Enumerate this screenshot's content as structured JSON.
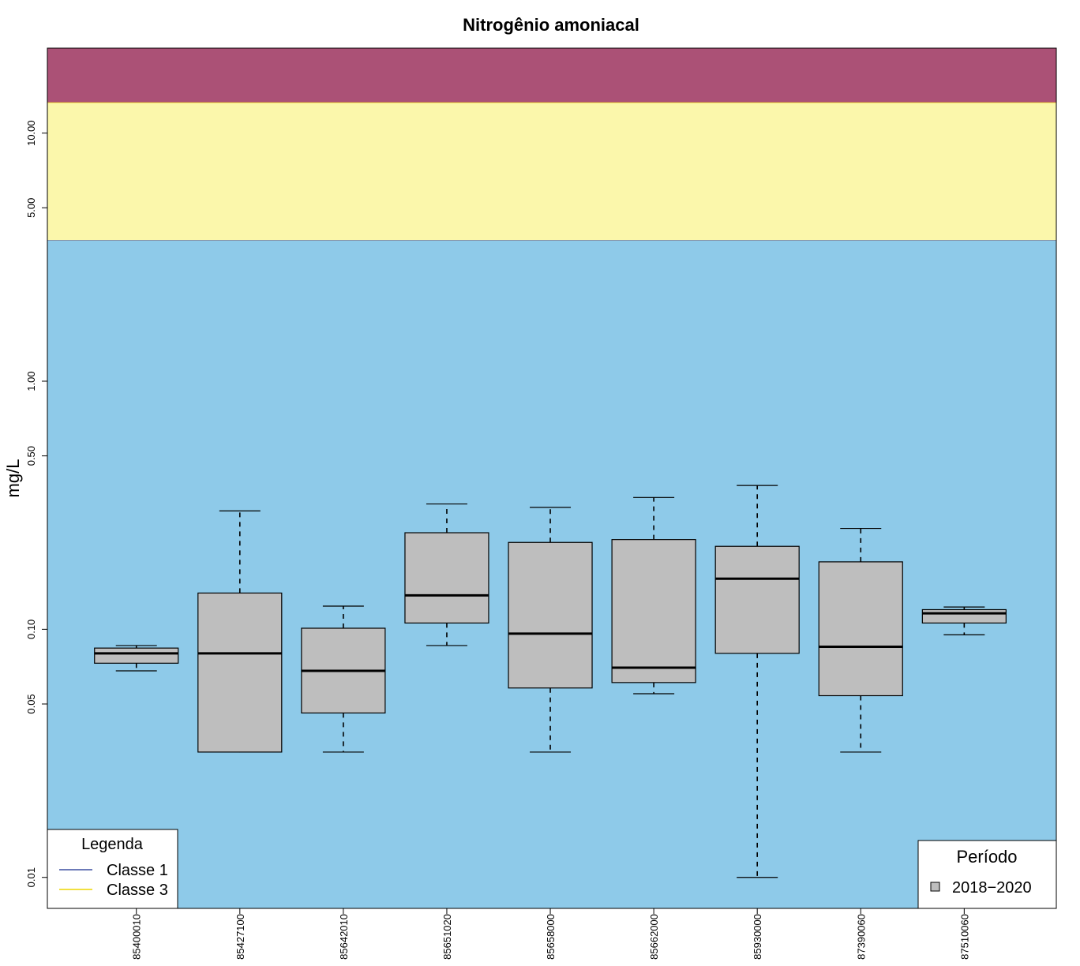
{
  "chart_data": {
    "type": "boxplot",
    "title": "Nitrogênio amoniacal",
    "ylabel": "mg/L",
    "xlabel": "",
    "yscale": "log",
    "ylim": [
      0.0075,
      22
    ],
    "yticks": [
      0.01,
      0.05,
      0.1,
      0.5,
      1.0,
      5.0,
      10.0
    ],
    "ytick_labels": [
      "0.01",
      "0.05",
      "0.10",
      "0.50",
      "1.00",
      "5.00",
      "10.00"
    ],
    "bands": [
      {
        "name": "Classe 1",
        "from": 0.0075,
        "to": 3.7,
        "color": "#8ECAE9",
        "line_color": "#3C4FA0"
      },
      {
        "name": "Classe 3",
        "from": 3.7,
        "to": 13.3,
        "color": "#FBF7AB",
        "line_color": "#EDD500"
      },
      {
        "name": "",
        "from": 13.3,
        "to": 22,
        "color": "#AB5176"
      }
    ],
    "categories": [
      "85400010",
      "85427100",
      "85642010",
      "85651020",
      "85658000",
      "85662000",
      "85930000",
      "87390060",
      "87510060"
    ],
    "series": [
      {
        "name": "2018−2020",
        "color": "#BEBEBE",
        "boxes": [
          {
            "min": 0.068,
            "q1": 0.073,
            "median": 0.08,
            "q3": 0.084,
            "max": 0.086
          },
          {
            "min": 0.032,
            "q1": 0.032,
            "median": 0.08,
            "q3": 0.14,
            "max": 0.3
          },
          {
            "min": 0.032,
            "q1": 0.046,
            "median": 0.068,
            "q3": 0.101,
            "max": 0.124
          },
          {
            "min": 0.086,
            "q1": 0.106,
            "median": 0.137,
            "q3": 0.245,
            "max": 0.32
          },
          {
            "min": 0.032,
            "q1": 0.058,
            "median": 0.096,
            "q3": 0.224,
            "max": 0.31
          },
          {
            "min": 0.055,
            "q1": 0.061,
            "median": 0.07,
            "q3": 0.23,
            "max": 0.34
          },
          {
            "min": 0.01,
            "q1": 0.08,
            "median": 0.16,
            "q3": 0.216,
            "max": 0.38
          },
          {
            "min": 0.032,
            "q1": 0.054,
            "median": 0.085,
            "q3": 0.187,
            "max": 0.255
          },
          {
            "min": 0.095,
            "q1": 0.106,
            "median": 0.116,
            "q3": 0.12,
            "max": 0.123
          }
        ]
      }
    ],
    "legends": [
      {
        "title": "Legenda",
        "position": "bottom-left",
        "entries": [
          "Classe 1",
          "Classe 3"
        ]
      },
      {
        "title": "Período",
        "position": "bottom-right",
        "entries": [
          "2018−2020"
        ]
      }
    ]
  }
}
